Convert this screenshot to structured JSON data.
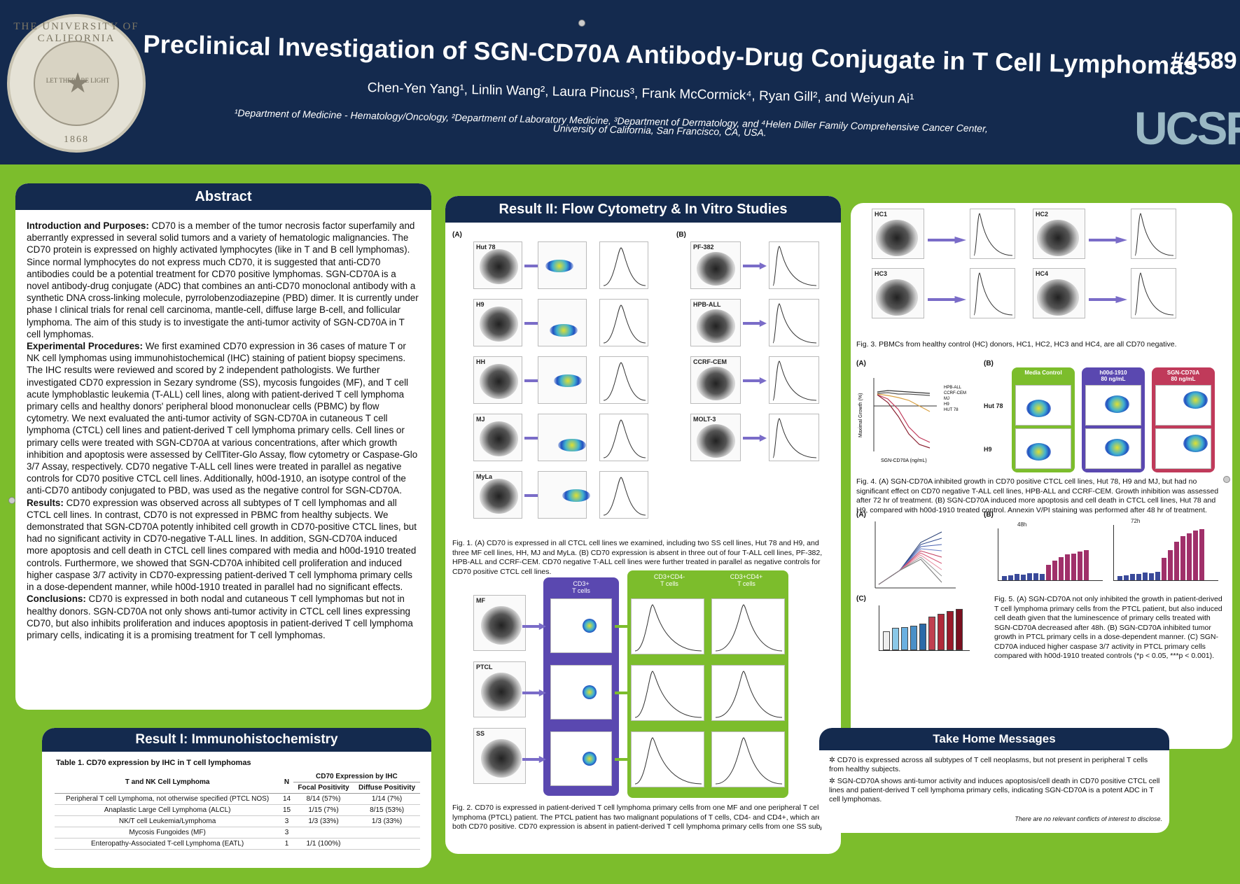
{
  "header": {
    "title": "Preclinical Investigation of SGN-CD70A Antibody-Drug Conjugate in T Cell Lymphomas",
    "poster_id": "#4589",
    "authors": "Chen-Yen Yang¹, Linlin Wang², Laura Pincus³, Frank McCormick⁴, Ryan Gill², and Weiyun Ai¹",
    "affiliations_1": "¹Department of Medicine - Hematology/Oncology, ²Department of Laboratory Medicine, ³Department of Dermatology, and ⁴Helen Diller Family Comprehensive Cancer Center,",
    "affiliations_2": "University of California, San Francisco, CA, USA.",
    "seal_top": "THE UNIVERSITY OF CALIFORNIA",
    "seal_bottom": "1868",
    "seal_motto": "LET THERE BE LIGHT",
    "logo": "UCSF"
  },
  "abstract": {
    "heading": "Abstract",
    "intro_label": "Introduction and Purposes:",
    "intro_text": " CD70 is a member of the tumor necrosis factor superfamily and aberrantly expressed in several solid tumors and a variety of hematologic malignancies. The CD70 protein is expressed on highly activated lymphocytes (like in T and B cell lymphomas). Since normal lymphocytes do not express much CD70, it is suggested that anti-CD70 antibodies could be a potential treatment for CD70 positive lymphomas. SGN-CD70A is a novel antibody-drug conjugate (ADC) that combines an anti-CD70 monoclonal antibody with a synthetic DNA cross-linking molecule, pyrrolobenzodiazepine (PBD) dimer. It is currently under phase I clinical trials for renal cell carcinoma, mantle-cell, diffuse large B-cell, and follicular lymphoma. The aim of this study is to investigate the anti-tumor activity of SGN-CD70A in T cell lymphomas.",
    "methods_label": "Experimental Procedures:",
    "methods_text": " We first examined CD70 expression in 36 cases of mature T or NK cell lymphomas using immunohistochemical (IHC) staining of patient biopsy specimens. The IHC results were reviewed and scored by 2 independent pathologists. We further investigated CD70 expression in Sezary syndrome (SS), mycosis fungoides (MF), and T cell acute lymphoblastic leukemia (T-ALL) cell lines, along with patient-derived T cell lymphoma primary cells and healthy donors' peripheral blood mononuclear cells (PBMC) by flow cytometry. We next evaluated the anti-tumor activity of SGN-CD70A in cutaneous T cell lymphoma (CTCL) cell lines and patient-derived T cell lymphoma primary cells. Cell lines or primary cells were treated with SGN-CD70A at various concentrations, after which growth inhibition and apoptosis were assessed by CellTiter-Glo Assay, flow cytometry or Caspase-Glo 3/7 Assay, respectively. CD70 negative T-ALL cell lines were treated in parallel as negative controls for CD70 positive CTCL cell lines. Additionally, h00d-1910, an isotype control of the anti-CD70 antibody conjugated to PBD, was used as the negative control for SGN-CD70A.",
    "results_label": "Results:",
    "results_text": " CD70 expression was observed across all subtypes of T cell lymphomas and all CTCL cell lines. In contrast, CD70 is not expressed in PBMC from healthy subjects. We demonstrated that SGN-CD70A potently inhibited cell growth in CD70-positive CTCL lines, but had no significant activity in CD70-negative T-ALL lines. In addition, SGN-CD70A induced more apoptosis and cell death in CTCL cell lines compared with media and h00d-1910 treated controls. Furthermore, we showed that SGN-CD70A inhibited cell proliferation and induced higher caspase 3/7 activity in CD70-expressing patient-derived T cell lymphoma primary cells in a dose-dependent manner, while h00d-1910 treated in parallel had no significant effects.",
    "conclusions_label": "Conclusions:",
    "conclusions_text": " CD70 is expressed in both nodal and cutaneous T cell lymphomas but not in healthy donors. SGN-CD70A not only shows anti-tumor activity in CTCL cell lines expressing CD70, but also inhibits proliferation and induces apoptosis in patient-derived T cell lymphoma primary cells, indicating it is a promising treatment for T cell lymphomas."
  },
  "result1": {
    "heading": "Result I: Immunohistochemistry",
    "table_caption": "Table 1. CD70 expression by IHC in T cell lymphomas",
    "col_lymphoma": "T and NK Cell Lymphoma",
    "col_n": "N",
    "col_group": "CD70 Expression by IHC",
    "col_focal": "Focal Positivity",
    "col_diffuse": "Diffuse Positivity",
    "rows": [
      {
        "name": "Peripheral T cell Lymphoma, not otherwise specified (PTCL NOS)",
        "n": "14",
        "focal": "8/14 (57%)",
        "diffuse": "1/14 (7%)"
      },
      {
        "name": "Anaplastic Large Cell Lymphoma (ALCL)",
        "n": "15",
        "focal": "1/15 (7%)",
        "diffuse": "8/15 (53%)"
      },
      {
        "name": "NK/T cell Leukemia/Lymphoma",
        "n": "3",
        "focal": "1/3 (33%)",
        "diffuse": "1/3 (33%)"
      },
      {
        "name": "Mycosis Fungoides (MF)",
        "n": "3",
        "focal": "",
        "diffuse": ""
      },
      {
        "name": "Enteropathy-Associated T-cell Lymphoma (EATL)",
        "n": "1",
        "focal": "1/1 (100%)",
        "diffuse": ""
      }
    ]
  },
  "result2": {
    "heading": "Result II: Flow Cytometry & In Vitro Studies",
    "panel_a": "(A)",
    "panel_b": "(B)",
    "cells_a": [
      "Hut 78",
      "H9",
      "HH",
      "MJ",
      "MyLa"
    ],
    "cells_b": [
      "PF-382",
      "HPB-ALL",
      "CCRF-CEM",
      "MOLT-3"
    ],
    "fig1_caption": "Fig. 1. (A) CD70 is expressed in all CTCL cell lines we examined, including two SS cell lines, Hut 78 and H9, and three MF cell lines, HH, MJ and MyLa. (B) CD70 expression is absent in three out of four T-ALL cell lines, PF-382, HPB-ALL and CCRF-CEM. CD70 negative T-ALL cell lines were further treated in parallel as negative controls for CD70 positive CTCL cell lines.",
    "fig2_samples": [
      "MF",
      "PTCL",
      "SS"
    ],
    "fig2_cd3": "CD3+\nT cells",
    "fig2_cd4neg": "CD3+CD4-\nT cells",
    "fig2_cd4pos": "CD3+CD4+\nT cells",
    "fig2_caption": "Fig. 2. CD70 is expressed in patient-derived T cell lymphoma primary cells from one MF and one peripheral T cell lymphoma (PTCL) patient. The PTCL patient has two malignant populations of T cells, CD4- and CD4+, which are both CD70 positive. CD70 expression is absent in patient-derived T cell lymphoma primary cells from one SS subject."
  },
  "result3": {
    "hc_labels": [
      "HC1",
      "HC2",
      "HC3",
      "HC4"
    ],
    "fig3_caption": "Fig. 3. PBMCs from healthy control (HC) donors, HC1, HC2, HC3 and HC4, are all CD70 negative.",
    "fig4_a": "(A)",
    "fig4_b": "(B)",
    "fig4_legend": [
      "HPB-ALL",
      "CCRF-CEM",
      "MJ",
      "H9",
      "HUT 78"
    ],
    "fig4_xlabel": "SGN-CD70A (ng/mL)",
    "fig4_ylabel": "Maximal Growth (%)",
    "fig4_cols": [
      "Media Control",
      "h00d-1910\n80 ng/mL",
      "SGN-CD70A\n80 ng/mL"
    ],
    "fig4_rows": [
      "Hut 78",
      "H9"
    ],
    "fig4_caption": "Fig. 4. (A) SGN-CD70A inhibited growth in CD70 positive CTCL cell lines, Hut 78, H9 and MJ, but had no significant effect on CD70 negative T-ALL cell lines, HPB-ALL and CCRF-CEM. Growth inhibition was assessed after 72 hr of treatment. (B) SGN-CD70A induced more apoptosis and cell death in CTCL cell lines, Hut 78 and H9, compared with h00d-1910 treated control. Annexin V/PI staining was performed after 48 hr of treatment.",
    "fig5_a": "(A)",
    "fig5_b": "(B)",
    "fig5_c": "(C)",
    "fig5_48h": "48h",
    "fig5_72h": "72h",
    "fig5_caption": "Fig. 5. (A) SGN-CD70A not only inhibited the growth in patient-derived T cell lymphoma primary cells from the PTCL patient, but also induced cell death given that the luminescence of primary cells treated with SGN-CD70A decreased after 48h. (B) SGN-CD70A inhibited tumor growth in PTCL primary cells in a dose-dependent manner. (C) SGN-CD70A induced higher caspase 3/7 activity in PTCL primary cells compared with h00d-1910 treated controls (*p < 0.05, ***p < 0.001)."
  },
  "take_home": {
    "heading": "Take Home Messages",
    "msg1": "CD70 is expressed across all subtypes of T cell neoplasms, but not present in peripheral T cells from healthy subjects.",
    "msg2": "SGN-CD70A shows anti-tumor activity and induces apoptosis/cell death in CD70 positive CTCL cell lines and patient-derived T cell lymphoma primary cells, indicating SGN-CD70A is a potent ADC in T cell lymphomas.",
    "disclosure": "There are no relevant conflicts of interest to disclose."
  },
  "colors": {
    "navy": "#142a4e",
    "green": "#7cbd2c",
    "purple": "#5a48b0",
    "pink": "#c03a5a"
  }
}
